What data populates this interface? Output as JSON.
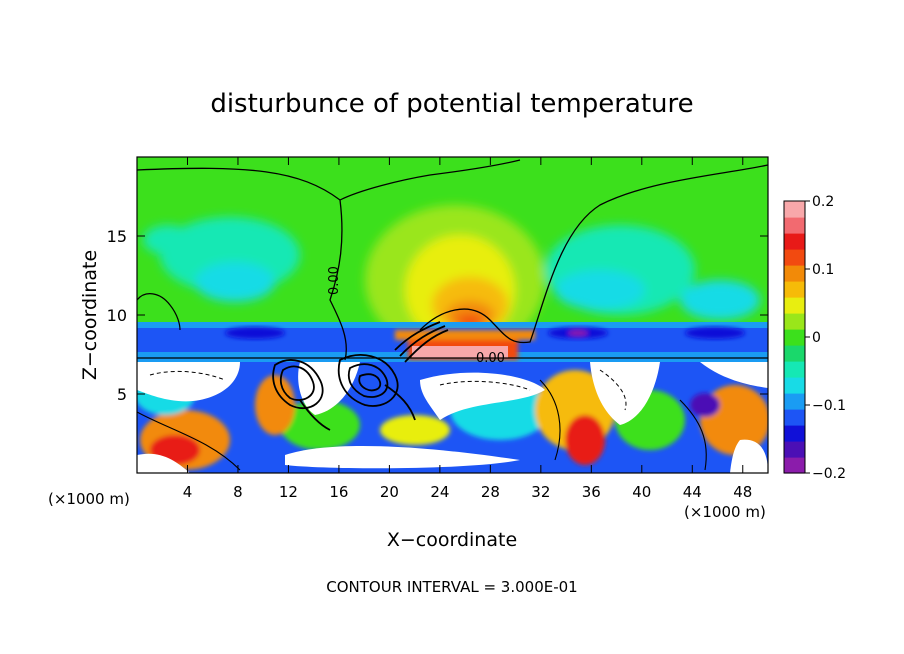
{
  "chart_data": {
    "type": "heatmap",
    "title": "disturbunce of potential temperature",
    "xlabel": "X−coordinate",
    "ylabel": "Z−coordinate",
    "x_unit": "(×1000 m)",
    "z_unit": "(×1000 m)",
    "xlim": [
      0,
      50
    ],
    "ylim": [
      0,
      20
    ],
    "x_ticks": [
      4,
      8,
      12,
      16,
      20,
      24,
      28,
      32,
      36,
      40,
      44,
      48
    ],
    "y_ticks": [
      5,
      10,
      15
    ],
    "colorbar": {
      "range": [
        -0.2,
        0.2
      ],
      "tick_values": [
        0.2,
        0.1,
        0,
        -0.1,
        -0.2
      ],
      "tick_labels": [
        "0.2",
        "0.1",
        "0",
        "−0.1",
        "−0.2"
      ],
      "colors": [
        "#8b1cab",
        "#4b0fb5",
        "#1010d8",
        "#1d55f5",
        "#1a9cf3",
        "#18dbe6",
        "#15e8b4",
        "#1ad86b",
        "#3ce01c",
        "#9ae61a",
        "#e8ee10",
        "#f6bb08",
        "#f28a08",
        "#f24a10",
        "#e81a18",
        "#f26a70",
        "#f8a8aa"
      ]
    },
    "contour_labels": [
      "0.00",
      "0.00"
    ],
    "footnote": "CONTOUR INTERVAL = 3.000E-01",
    "grid": false,
    "legend": "colorbar-right"
  }
}
